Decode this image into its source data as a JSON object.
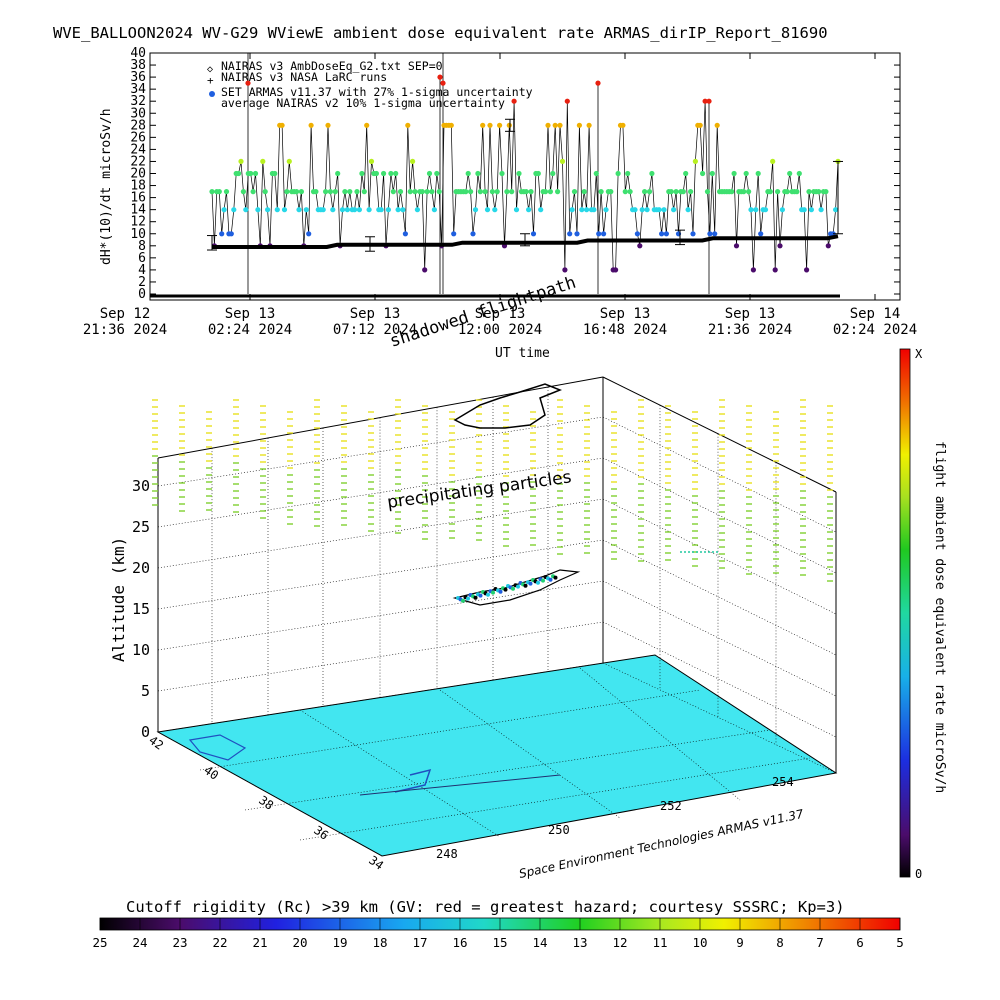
{
  "title": "WVE_BALLOON2024 WV-G29 WViewE ambient dose equivalent rate ARMAS_dirIP_Report_81690",
  "colors": {
    "black_marker": "#000000",
    "purple_marker": "#4b0c6b",
    "blue_marker": "#1f5fe0",
    "cyan_marker": "#28d8e8",
    "green_marker": "#3fe070",
    "yellowgreen_marker": "#b8f020",
    "orange_marker": "#f0b000",
    "red_marker": "#e82010",
    "ground": "#42e6f0"
  },
  "chart_data": [
    {
      "type": "scatter",
      "title": "WVE_BALLOON2024 WV-G29 WViewE ambient dose equivalent rate ARMAS_dirIP_Report_81690",
      "xlabel": "UT time",
      "ylabel": "dH*(10)/dt microSv/h",
      "ylim": [
        0,
        40
      ],
      "yticks": [
        "0",
        "2",
        "4",
        "6",
        "8",
        "10",
        "12",
        "14",
        "16",
        "18",
        "20",
        "22",
        "24",
        "26",
        "28",
        "30",
        "32",
        "34",
        "36",
        "38",
        "40"
      ],
      "xticks": [
        {
          "day": "Sep 12",
          "time": "21:36 2024"
        },
        {
          "day": "Sep 13",
          "time": "02:24 2024"
        },
        {
          "day": "Sep 13",
          "time": "07:12 2024"
        },
        {
          "day": "Sep 13",
          "time": "12:00 2024"
        },
        {
          "day": "Sep 13",
          "time": "16:48 2024"
        },
        {
          "day": "Sep 13",
          "time": "21:36 2024"
        },
        {
          "day": "Sep 14",
          "time": "02:24 2024"
        }
      ],
      "legend": [
        {
          "symbol": "◇",
          "text": "NAIRAS v3 AmbDoseEq_G2.txt SEP=0"
        },
        {
          "symbol": "+",
          "text": "NAIRAS v3 NASA LaRC runs"
        },
        {
          "symbol": "●",
          "text": "SET ARMAS v11.37 with 27% 1-sigma uncertainty"
        },
        {
          "symbol": "",
          "text": "average NAIRAS v2 10% 1-sigma uncertainty"
        }
      ],
      "legend_position": "top-left",
      "series": [
        {
          "marker_levels": [
            0,
            4,
            8,
            10,
            14,
            17,
            20,
            22,
            28,
            32,
            35
          ]
        },
        {
          "nairas_baseline_start": 7.8,
          "nairas_baseline_end": 9.6
        }
      ],
      "annotations": [
        "shadowed flightpath"
      ]
    },
    {
      "type": "scatter",
      "ylabel": "Altitude (km)",
      "zticks": [
        "0",
        "5",
        "10",
        "15",
        "20",
        "25",
        "30"
      ],
      "lat_ticks": [
        "42",
        "40",
        "38",
        "36",
        "34"
      ],
      "lon_ticks": [
        "248",
        "250",
        "252",
        "254"
      ],
      "annotations": [
        "precipitating particles"
      ],
      "colorbar_label": "flight ambient dose equivalent rate microSv/h",
      "colorbar_top": "X",
      "colorbar_bottom": "0",
      "credit": "Space Environment Technologies ARMAS v11.37"
    },
    {
      "type": "heatmap",
      "title": "Cutoff rigidity (Rc) >39 km (GV: red = greatest hazard; courtesy SSSRC; Kp=3)",
      "scale_labels": [
        "25",
        "24",
        "23",
        "22",
        "21",
        "20",
        "19",
        "18",
        "17",
        "16",
        "15",
        "14",
        "13",
        "12",
        "11",
        "10",
        "9",
        "8",
        "7",
        "6",
        "5"
      ]
    }
  ]
}
